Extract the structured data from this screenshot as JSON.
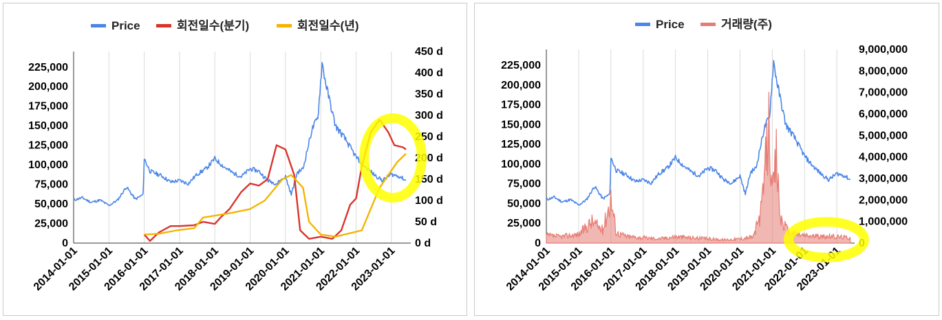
{
  "chart_data": [
    {
      "type": "line",
      "legend_position": "top",
      "grid": "vertical",
      "series": [
        {
          "name": "Price",
          "color": "#4a86e8",
          "axis": "left",
          "points": [
            [
              "2014-01-01",
              55000
            ],
            [
              "2014-04-01",
              58000
            ],
            [
              "2014-07-01",
              52000
            ],
            [
              "2014-10-01",
              55000
            ],
            [
              "2015-01-01",
              48000
            ],
            [
              "2015-04-01",
              55000
            ],
            [
              "2015-07-01",
              72000
            ],
            [
              "2015-10-01",
              56000
            ],
            [
              "2015-12-20",
              62000
            ],
            [
              "2016-01-01",
              108000
            ],
            [
              "2016-03-01",
              92000
            ],
            [
              "2016-07-01",
              86000
            ],
            [
              "2016-10-01",
              78000
            ],
            [
              "2017-01-01",
              80000
            ],
            [
              "2017-04-01",
              76000
            ],
            [
              "2017-07-01",
              88000
            ],
            [
              "2017-10-01",
              95000
            ],
            [
              "2018-01-01",
              108000
            ],
            [
              "2018-04-01",
              98000
            ],
            [
              "2018-07-01",
              90000
            ],
            [
              "2018-10-01",
              85000
            ],
            [
              "2019-01-01",
              95000
            ],
            [
              "2019-04-01",
              92000
            ],
            [
              "2019-07-01",
              80000
            ],
            [
              "2019-10-01",
              76000
            ],
            [
              "2020-01-01",
              85000
            ],
            [
              "2020-03-01",
              62000
            ],
            [
              "2020-05-01",
              90000
            ],
            [
              "2020-07-01",
              95000
            ],
            [
              "2020-10-01",
              145000
            ],
            [
              "2020-12-01",
              160000
            ],
            [
              "2021-01-15",
              230000
            ],
            [
              "2021-03-01",
              200000
            ],
            [
              "2021-06-01",
              150000
            ],
            [
              "2021-09-01",
              135000
            ],
            [
              "2022-01-01",
              110000
            ],
            [
              "2022-04-01",
              98000
            ],
            [
              "2022-07-01",
              88000
            ],
            [
              "2022-10-01",
              80000
            ],
            [
              "2023-01-01",
              88000
            ],
            [
              "2023-04-01",
              85000
            ],
            [
              "2023-06-01",
              80000
            ]
          ]
        },
        {
          "name": "회전일수(분기)",
          "color": "#d9342b",
          "axis": "right",
          "points": [
            [
              "2016-01-01",
              20
            ],
            [
              "2016-03-01",
              5
            ],
            [
              "2016-06-01",
              25
            ],
            [
              "2016-10-01",
              40
            ],
            [
              "2017-01-01",
              40
            ],
            [
              "2017-06-01",
              42
            ],
            [
              "2017-09-01",
              50
            ],
            [
              "2018-01-01",
              45
            ],
            [
              "2018-03-01",
              60
            ],
            [
              "2018-06-01",
              80
            ],
            [
              "2018-10-01",
              120
            ],
            [
              "2019-01-01",
              140
            ],
            [
              "2019-04-01",
              135
            ],
            [
              "2019-07-01",
              150
            ],
            [
              "2019-10-01",
              230
            ],
            [
              "2020-01-01",
              220
            ],
            [
              "2020-04-01",
              160
            ],
            [
              "2020-06-01",
              30
            ],
            [
              "2020-09-01",
              10
            ],
            [
              "2021-01-01",
              15
            ],
            [
              "2021-05-01",
              10
            ],
            [
              "2021-08-01",
              30
            ],
            [
              "2021-11-01",
              90
            ],
            [
              "2022-01-01",
              105
            ],
            [
              "2022-03-01",
              180
            ],
            [
              "2022-06-01",
              260
            ],
            [
              "2022-09-01",
              290
            ],
            [
              "2022-12-01",
              260
            ],
            [
              "2023-02-01",
              230
            ],
            [
              "2023-05-01",
              225
            ],
            [
              "2023-06-01",
              220
            ]
          ]
        },
        {
          "name": "회전일수(년)",
          "color": "#f4b400",
          "axis": "right",
          "points": [
            [
              "2016-01-01",
              20
            ],
            [
              "2016-06-01",
              22
            ],
            [
              "2016-12-01",
              30
            ],
            [
              "2017-06-01",
              35
            ],
            [
              "2017-09-01",
              60
            ],
            [
              "2018-06-01",
              70
            ],
            [
              "2019-01-01",
              80
            ],
            [
              "2019-06-01",
              100
            ],
            [
              "2019-12-01",
              150
            ],
            [
              "2020-03-01",
              160
            ],
            [
              "2020-07-01",
              130
            ],
            [
              "2020-09-01",
              50
            ],
            [
              "2021-01-01",
              20
            ],
            [
              "2021-06-01",
              15
            ],
            [
              "2021-12-01",
              25
            ],
            [
              "2022-03-01",
              30
            ],
            [
              "2022-06-01",
              80
            ],
            [
              "2022-09-01",
              130
            ],
            [
              "2022-12-01",
              160
            ],
            [
              "2023-03-01",
              190
            ],
            [
              "2023-06-01",
              210
            ]
          ]
        }
      ],
      "x_ticks": [
        "2014-01-01",
        "2015-01-01",
        "2016-01-01",
        "2017-01-01",
        "2018-01-01",
        "2019-01-01",
        "2020-01-01",
        "2021-01-01",
        "2022-01-01",
        "2023-01-01"
      ],
      "y_left_ticks": [
        "0",
        "25,000",
        "50,000",
        "75,000",
        "100,000",
        "125,000",
        "150,000",
        "175,000",
        "200,000",
        "225,000"
      ],
      "y_right_ticks": [
        "0 d",
        "50 d",
        "100 d",
        "150 d",
        "200 d",
        "250 d",
        "300 d",
        "350 d",
        "400 d",
        "450 d"
      ],
      "y_left_range": [
        0,
        245000
      ],
      "y_right_range": [
        0,
        450
      ],
      "highlight": {
        "shape": "circle",
        "color": "#ffff00",
        "around": "2023 right end"
      }
    },
    {
      "type": "line",
      "legend_position": "top",
      "grid": "vertical",
      "series": [
        {
          "name": "Price",
          "color": "#4a86e8",
          "axis": "left",
          "points": [
            [
              "2014-01-01",
              55000
            ],
            [
              "2014-04-01",
              58000
            ],
            [
              "2014-07-01",
              52000
            ],
            [
              "2014-10-01",
              55000
            ],
            [
              "2015-01-01",
              48000
            ],
            [
              "2015-04-01",
              55000
            ],
            [
              "2015-07-01",
              72000
            ],
            [
              "2015-10-01",
              56000
            ],
            [
              "2015-12-20",
              62000
            ],
            [
              "2016-01-01",
              108000
            ],
            [
              "2016-03-01",
              92000
            ],
            [
              "2016-07-01",
              86000
            ],
            [
              "2016-10-01",
              78000
            ],
            [
              "2017-01-01",
              80000
            ],
            [
              "2017-04-01",
              76000
            ],
            [
              "2017-07-01",
              88000
            ],
            [
              "2017-10-01",
              95000
            ],
            [
              "2018-01-01",
              108000
            ],
            [
              "2018-04-01",
              98000
            ],
            [
              "2018-07-01",
              90000
            ],
            [
              "2018-10-01",
              85000
            ],
            [
              "2019-01-01",
              95000
            ],
            [
              "2019-04-01",
              92000
            ],
            [
              "2019-07-01",
              80000
            ],
            [
              "2019-10-01",
              76000
            ],
            [
              "2020-01-01",
              85000
            ],
            [
              "2020-03-01",
              62000
            ],
            [
              "2020-05-01",
              90000
            ],
            [
              "2020-07-01",
              95000
            ],
            [
              "2020-10-01",
              145000
            ],
            [
              "2020-12-01",
              160000
            ],
            [
              "2021-01-15",
              230000
            ],
            [
              "2021-03-01",
              200000
            ],
            [
              "2021-06-01",
              150000
            ],
            [
              "2021-09-01",
              135000
            ],
            [
              "2022-01-01",
              110000
            ],
            [
              "2022-04-01",
              98000
            ],
            [
              "2022-07-01",
              88000
            ],
            [
              "2022-10-01",
              80000
            ],
            [
              "2023-01-01",
              88000
            ],
            [
              "2023-04-01",
              85000
            ],
            [
              "2023-06-01",
              80000
            ]
          ]
        },
        {
          "name": "거래량(주)",
          "color": "#e67c73",
          "axis": "right",
          "points": [
            [
              "2014-01-01",
              350000
            ],
            [
              "2014-06-01",
              300000
            ],
            [
              "2015-01-01",
              400000
            ],
            [
              "2015-06-01",
              1000000
            ],
            [
              "2015-10-01",
              600000
            ],
            [
              "2016-01-01",
              2100000
            ],
            [
              "2016-03-01",
              500000
            ],
            [
              "2016-07-01",
              300000
            ],
            [
              "2017-01-01",
              250000
            ],
            [
              "2017-07-01",
              200000
            ],
            [
              "2018-01-01",
              300000
            ],
            [
              "2018-07-01",
              250000
            ],
            [
              "2019-01-01",
              200000
            ],
            [
              "2019-07-01",
              150000
            ],
            [
              "2020-01-01",
              200000
            ],
            [
              "2020-06-01",
              300000
            ],
            [
              "2020-09-01",
              1500000
            ],
            [
              "2020-12-01",
              5800000
            ],
            [
              "2021-01-01",
              2000000
            ],
            [
              "2021-02-15",
              4000000
            ],
            [
              "2021-04-01",
              1200000
            ],
            [
              "2021-07-01",
              500000
            ],
            [
              "2022-01-01",
              350000
            ],
            [
              "2022-07-01",
              300000
            ],
            [
              "2023-01-01",
              300000
            ],
            [
              "2023-06-01",
              250000
            ]
          ]
        }
      ],
      "x_ticks": [
        "2014-01-01",
        "2015-01-01",
        "2016-01-01",
        "2017-01-01",
        "2018-01-01",
        "2019-01-01",
        "2020-01-01",
        "2021-01-01",
        "2022-01-01",
        "2023-01-01"
      ],
      "y_left_ticks": [
        "0",
        "25,000",
        "50,000",
        "75,000",
        "100,000",
        "125,000",
        "150,000",
        "175,000",
        "200,000",
        "225,000"
      ],
      "y_right_ticks": [
        "0",
        "1,000,000",
        "2,000,000",
        "3,000,000",
        "4,000,000",
        "5,000,000",
        "6,000,000",
        "7,000,000",
        "8,000,000",
        "9,000,000"
      ],
      "y_left_range": [
        0,
        245000
      ],
      "y_right_range": [
        0,
        9000000
      ],
      "highlight": {
        "shape": "circle",
        "color": "#ffff00",
        "around": "2022-2023 lower right"
      }
    }
  ]
}
